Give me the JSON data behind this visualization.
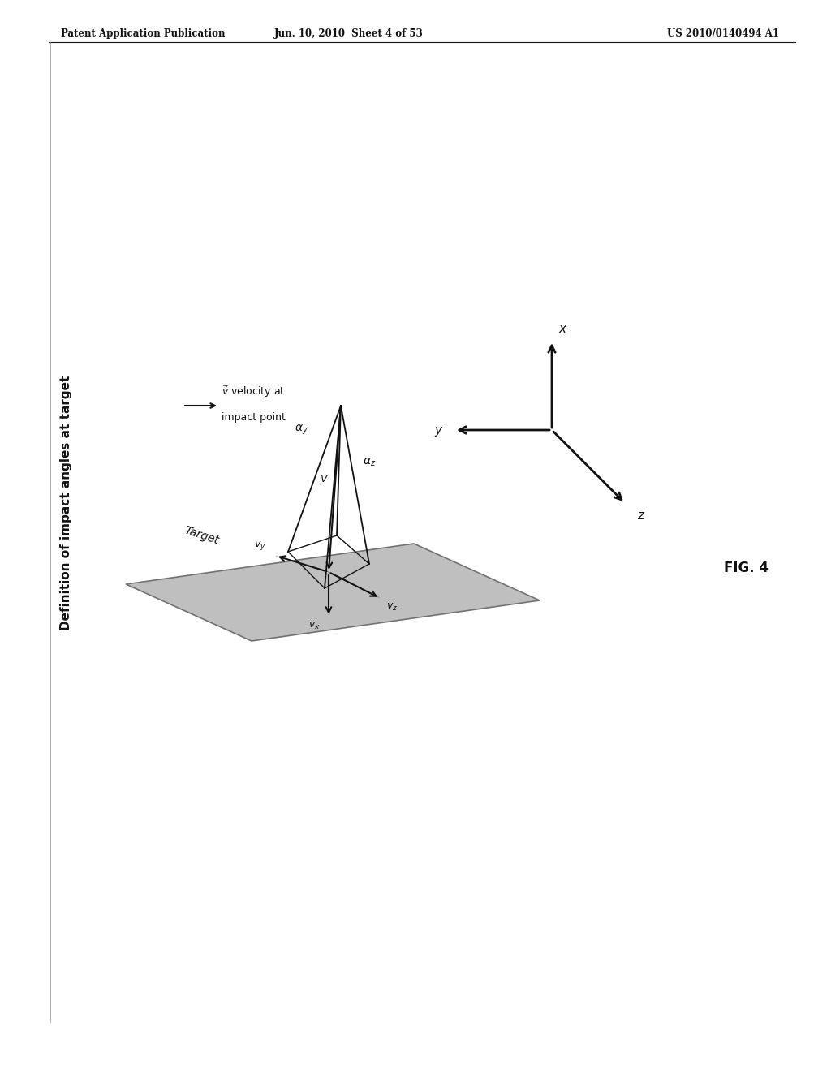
{
  "header_left": "Patent Application Publication",
  "header_mid": "Jun. 10, 2010  Sheet 4 of 53",
  "header_right": "US 2010/0140494 A1",
  "title_rotated": "Definition of impact angles at target",
  "target_label": "Target",
  "fig_label": "FIG. 4",
  "bg_color": "#ffffff",
  "dark_color": "#111111",
  "plane_fill": "#b8b8b8",
  "plane_edge": "#666666"
}
